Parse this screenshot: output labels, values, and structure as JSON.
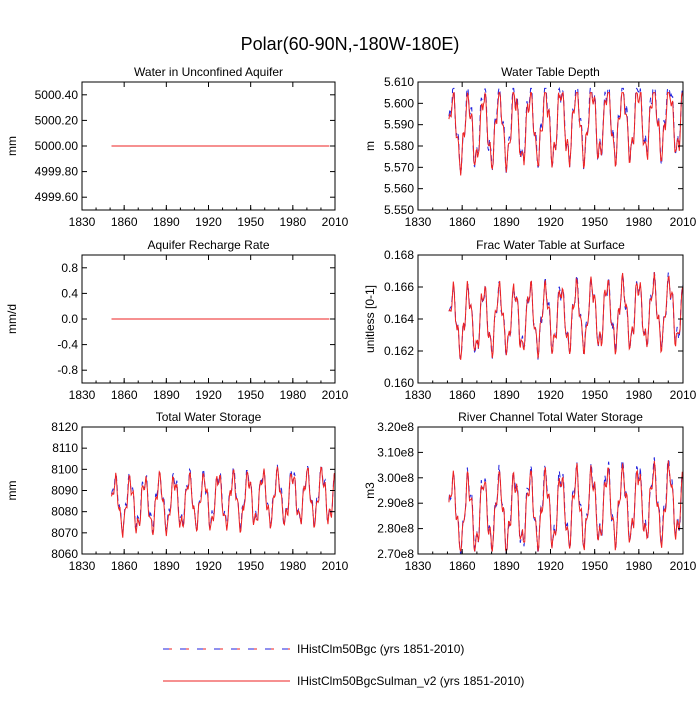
{
  "title": "Polar(60-90N,-180W-180E)",
  "colors": {
    "series1": "#2222dd",
    "series2": "#ee2222",
    "frame": "#000000"
  },
  "legend": [
    {
      "label": "IHistClm50Bgc (yrs 1851-2010)",
      "color": "#2222dd",
      "style": "dashed"
    },
    {
      "label": "IHistClm50BgcSulman_v2 (yrs 1851-2010)",
      "color": "#ee2222",
      "style": "solid"
    }
  ],
  "chart_data": [
    {
      "type": "line",
      "title": "Water in Unconfined Aquifer",
      "xlabel": "",
      "ylabel": "mm",
      "xlim": [
        1830,
        2010
      ],
      "xticks": [
        1830,
        1860,
        1890,
        1920,
        1950,
        1980,
        2010
      ],
      "ylim": [
        4999.5,
        5000.5
      ],
      "yticks": [
        4999.6,
        4999.8,
        5000.0,
        5000.2,
        5000.4
      ],
      "ytick_labels": [
        "4999.60",
        "4999.80",
        "5000.00",
        "5000.20",
        "5000.40"
      ],
      "series": [
        {
          "label_ref": 0,
          "x_range": [
            1851,
            2010
          ],
          "kind": "constant",
          "value": 5000.0
        },
        {
          "label_ref": 1,
          "x_range": [
            1851,
            2010
          ],
          "kind": "constant",
          "value": 5000.0
        }
      ]
    },
    {
      "type": "line",
      "title": "Water Table Depth",
      "xlabel": "",
      "ylabel": "m",
      "xlim": [
        1830,
        2010
      ],
      "xticks": [
        1830,
        1860,
        1890,
        1920,
        1950,
        1980,
        2010
      ],
      "ylim": [
        5.55,
        5.61
      ],
      "yticks": [
        5.55,
        5.56,
        5.57,
        5.58,
        5.59,
        5.6,
        5.61
      ],
      "ytick_labels": [
        "5.550",
        "5.560",
        "5.570",
        "5.580",
        "5.590",
        "5.600",
        "5.610"
      ],
      "series": [
        {
          "label_ref": 0,
          "x_range": [
            1851,
            2010
          ],
          "kind": "oscillating",
          "base": 5.588,
          "amp": 0.016,
          "period": 10.5,
          "min": 5.552,
          "max": 5.607
        },
        {
          "label_ref": 1,
          "x_range": [
            1851,
            2010
          ],
          "kind": "oscillating",
          "base": 5.587,
          "amp": 0.015,
          "period": 10.5,
          "min": 5.554,
          "max": 5.605
        }
      ]
    },
    {
      "type": "line",
      "title": "Aquifer Recharge Rate",
      "xlabel": "",
      "ylabel": "mm/d",
      "xlim": [
        1830,
        2010
      ],
      "xticks": [
        1830,
        1860,
        1890,
        1920,
        1950,
        1980,
        2010
      ],
      "ylim": [
        -1.0,
        1.0
      ],
      "yticks": [
        -0.8,
        -0.4,
        0.0,
        0.4,
        0.8
      ],
      "ytick_labels": [
        "-0.8",
        "-0.4",
        "0.0",
        "0.4",
        "0.8"
      ],
      "series": [
        {
          "label_ref": 0,
          "x_range": [
            1851,
            2010
          ],
          "kind": "constant",
          "value": 0.0
        },
        {
          "label_ref": 1,
          "x_range": [
            1851,
            2010
          ],
          "kind": "constant",
          "value": 0.0
        }
      ]
    },
    {
      "type": "line",
      "title": "Frac Water Table at Surface",
      "xlabel": "",
      "ylabel": "unitless [0-1]",
      "xlim": [
        1830,
        2010
      ],
      "xticks": [
        1830,
        1860,
        1890,
        1920,
        1950,
        1980,
        2010
      ],
      "ylim": [
        0.16,
        0.168
      ],
      "yticks": [
        0.16,
        0.162,
        0.164,
        0.166,
        0.168
      ],
      "ytick_labels": [
        "0.160",
        "0.162",
        "0.164",
        "0.166",
        "0.168"
      ],
      "series": [
        {
          "label_ref": 0,
          "x_range": [
            1851,
            2010
          ],
          "kind": "oscillating",
          "base": 0.1638,
          "amp": 0.0018,
          "period": 10.5,
          "min": 0.1603,
          "max": 0.1679
        },
        {
          "label_ref": 1,
          "x_range": [
            1851,
            2010
          ],
          "kind": "oscillating",
          "base": 0.1638,
          "amp": 0.0018,
          "period": 10.5,
          "min": 0.1602,
          "max": 0.1678
        }
      ]
    },
    {
      "type": "line",
      "title": "Total Water Storage",
      "xlabel": "",
      "ylabel": "mm",
      "xlim": [
        1830,
        2010
      ],
      "xticks": [
        1830,
        1860,
        1890,
        1920,
        1950,
        1980,
        2010
      ],
      "ylim": [
        8060,
        8120
      ],
      "yticks": [
        8060,
        8070,
        8080,
        8090,
        8100,
        8110,
        8120
      ],
      "ytick_labels": [
        "8060",
        "8070",
        "8080",
        "8090",
        "8100",
        "8110",
        "8120"
      ],
      "series": [
        {
          "label_ref": 0,
          "x_range": [
            1851,
            2010
          ],
          "kind": "oscillating",
          "base": 8084,
          "amp": 11,
          "period": 10.5,
          "min": 8066,
          "max": 8110
        },
        {
          "label_ref": 1,
          "x_range": [
            1851,
            2010
          ],
          "kind": "oscillating",
          "base": 8083,
          "amp": 11,
          "period": 10.5,
          "min": 8065,
          "max": 8108
        }
      ]
    },
    {
      "type": "line",
      "title": "River Channel Total Water Storage",
      "xlabel": "",
      "ylabel": "m3",
      "xlim": [
        1830,
        2010
      ],
      "xticks": [
        1830,
        1860,
        1890,
        1920,
        1950,
        1980,
        2010
      ],
      "ylim": [
        270000000.0,
        320000000.0
      ],
      "yticks": [
        270000000.0,
        280000000.0,
        290000000.0,
        300000000.0,
        310000000.0,
        320000000.0
      ],
      "ytick_labels": [
        "2.70e8",
        "2.80e8",
        "2.90e8",
        "3.00e8",
        "3.10e8",
        "3.20e8"
      ],
      "series": [
        {
          "label_ref": 0,
          "x_range": [
            1851,
            2010
          ],
          "kind": "oscillating",
          "base": 286000000.0,
          "amp": 13000000.0,
          "period": 10.5,
          "min": 270000000.0,
          "max": 310000000.0
        },
        {
          "label_ref": 1,
          "x_range": [
            1851,
            2010
          ],
          "kind": "oscillating",
          "base": 285500000.0,
          "amp": 12500000.0,
          "period": 10.5,
          "min": 271000000.0,
          "max": 308000000.0
        }
      ]
    }
  ]
}
